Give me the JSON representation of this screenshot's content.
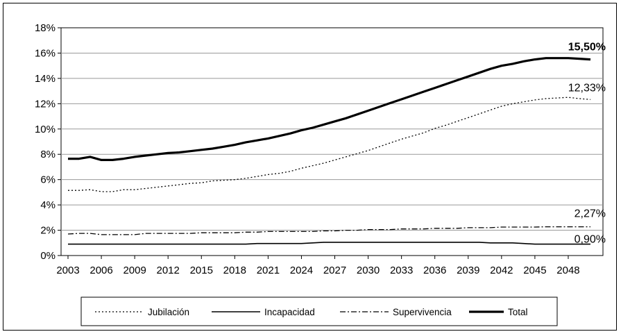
{
  "chart_data": {
    "type": "line",
    "xlim": [
      2003,
      2050
    ],
    "ylim": [
      0,
      18
    ],
    "yticks": [
      "0%",
      "2%",
      "4%",
      "6%",
      "8%",
      "10%",
      "12%",
      "14%",
      "16%",
      "18%"
    ],
    "xticks": [
      "2003",
      "2006",
      "2009",
      "2012",
      "2015",
      "2018",
      "2021",
      "2024",
      "2027",
      "2030",
      "2033",
      "2036",
      "2039",
      "2042",
      "2045",
      "2048"
    ],
    "grid": "horizontal",
    "legend_position": "bottom",
    "x": [
      2003,
      2004,
      2005,
      2006,
      2007,
      2008,
      2009,
      2010,
      2011,
      2012,
      2013,
      2014,
      2015,
      2016,
      2017,
      2018,
      2019,
      2020,
      2021,
      2022,
      2023,
      2024,
      2025,
      2026,
      2027,
      2028,
      2029,
      2030,
      2031,
      2032,
      2033,
      2034,
      2035,
      2036,
      2037,
      2038,
      2039,
      2040,
      2041,
      2042,
      2043,
      2044,
      2045,
      2046,
      2047,
      2048,
      2049,
      2050
    ],
    "series": [
      {
        "name": "Jubilación",
        "style": "dotted",
        "values": [
          5.15,
          5.15,
          5.2,
          5.05,
          5.05,
          5.2,
          5.2,
          5.3,
          5.4,
          5.5,
          5.6,
          5.7,
          5.75,
          5.9,
          5.95,
          6.0,
          6.1,
          6.25,
          6.4,
          6.5,
          6.65,
          6.9,
          7.1,
          7.3,
          7.55,
          7.8,
          8.05,
          8.3,
          8.6,
          8.9,
          9.2,
          9.45,
          9.7,
          10.05,
          10.3,
          10.6,
          10.9,
          11.2,
          11.5,
          11.8,
          12.0,
          12.15,
          12.3,
          12.4,
          12.45,
          12.5,
          12.4,
          12.33
        ],
        "end_label": "12,33%"
      },
      {
        "name": "Incapacidad",
        "style": "thin",
        "values": [
          0.9,
          0.9,
          0.9,
          0.9,
          0.9,
          0.9,
          0.9,
          0.9,
          0.9,
          0.9,
          0.9,
          0.9,
          0.9,
          0.9,
          0.9,
          0.9,
          0.9,
          0.95,
          0.95,
          0.95,
          0.95,
          0.95,
          1.0,
          1.05,
          1.05,
          1.05,
          1.05,
          1.05,
          1.05,
          1.05,
          1.05,
          1.05,
          1.05,
          1.05,
          1.05,
          1.05,
          1.05,
          1.05,
          1.0,
          1.0,
          1.0,
          0.95,
          0.9,
          0.9,
          0.9,
          0.9,
          0.9,
          0.9
        ],
        "end_label": "0,90%"
      },
      {
        "name": "Supervivencia",
        "style": "dashdot",
        "values": [
          1.7,
          1.75,
          1.75,
          1.65,
          1.65,
          1.65,
          1.65,
          1.75,
          1.75,
          1.75,
          1.75,
          1.75,
          1.8,
          1.8,
          1.8,
          1.8,
          1.85,
          1.85,
          1.9,
          1.9,
          1.9,
          1.9,
          1.9,
          1.95,
          1.95,
          2.0,
          2.0,
          2.05,
          2.05,
          2.05,
          2.1,
          2.1,
          2.1,
          2.15,
          2.15,
          2.15,
          2.2,
          2.2,
          2.2,
          2.25,
          2.25,
          2.25,
          2.25,
          2.27,
          2.27,
          2.27,
          2.27,
          2.27
        ],
        "end_label": "2,27%"
      },
      {
        "name": "Total",
        "style": "thick",
        "values": [
          7.65,
          7.65,
          7.8,
          7.55,
          7.55,
          7.65,
          7.8,
          7.9,
          8.0,
          8.1,
          8.15,
          8.25,
          8.35,
          8.45,
          8.6,
          8.75,
          8.95,
          9.1,
          9.25,
          9.45,
          9.65,
          9.9,
          10.1,
          10.35,
          10.6,
          10.85,
          11.15,
          11.45,
          11.75,
          12.05,
          12.35,
          12.65,
          12.95,
          13.25,
          13.55,
          13.85,
          14.15,
          14.45,
          14.75,
          15.0,
          15.15,
          15.35,
          15.5,
          15.6,
          15.6,
          15.6,
          15.55,
          15.5
        ],
        "end_label": "15,50%"
      }
    ]
  }
}
